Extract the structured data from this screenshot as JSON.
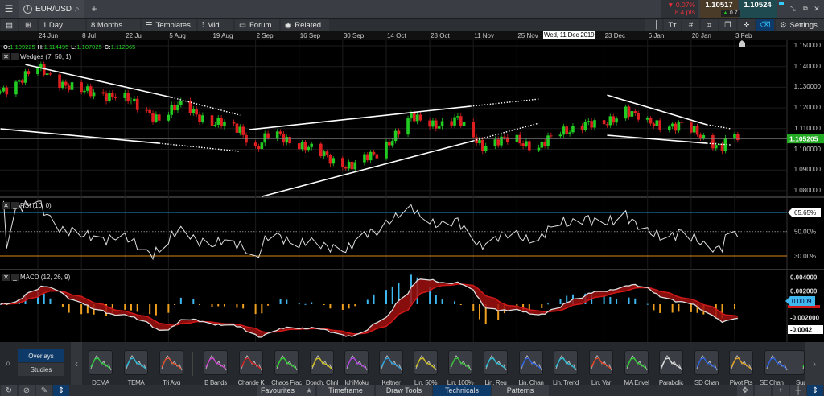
{
  "window": {
    "tab_number": "1",
    "symbol": "EUR/USD",
    "add_tab": "+"
  },
  "quote": {
    "change_pct": "▼ 0.07%",
    "change_pts": "8.4 pts",
    "sell": "1.10517",
    "buy": "1.10524",
    "spread": "0.7",
    "colors": {
      "down": "#e0303a",
      "sell_bg": "#4a3a28",
      "buy_bg": "#1f4a50"
    }
  },
  "toolbar": {
    "interval": "1 Day",
    "range": "8 Months",
    "templates": "Templates",
    "mid": "Mid",
    "forum": "Forum",
    "related": "Related",
    "settings": "Settings"
  },
  "date_axis": {
    "ticks": [
      [
        "24 Jun",
        "2019-06-24"
      ],
      [
        "8 Jul",
        "2019-07-08"
      ],
      [
        "22 Jul",
        "2019-07-22"
      ],
      [
        "5 Aug",
        "2019-08-05"
      ],
      [
        "19 Aug",
        "2019-08-19"
      ],
      [
        "2 Sep",
        "2019-09-02"
      ],
      [
        "16 Sep",
        "2019-09-16"
      ],
      [
        "30 Sep",
        "2019-09-30"
      ],
      [
        "14 Oct",
        "2019-10-14"
      ],
      [
        "28 Oct",
        "2019-10-28"
      ],
      [
        "11 Nov",
        "2019-11-11"
      ],
      [
        "25 Nov",
        "2019-11-25"
      ],
      [
        "23 Dec",
        "2019-12-23"
      ],
      [
        "6 Jan",
        "2020-01-06"
      ],
      [
        "20 Jan",
        "2020-01-20"
      ],
      [
        "3 Feb",
        "2020-02-03"
      ]
    ],
    "crosshair_label": "Wed, 11 Dec 2019"
  },
  "ohlc": {
    "o_label": "O:",
    "o": "1.109225",
    "h_label": "H:",
    "h": "1.114495",
    "l_label": "L:",
    "l": "1.107025",
    "c_label": "C:",
    "c": "1.112965"
  },
  "chart_data": {
    "type": "candlestick",
    "instrument": "EUR/USD",
    "price_axis": {
      "ticks": [
        "1.150000",
        "1.140000",
        "1.130000",
        "1.120000",
        "1.110000",
        "1.100000",
        "1.090000",
        "1.080000"
      ],
      "range": [
        1.077,
        1.152
      ]
    },
    "current_price": "1.105205",
    "close_path": [
      [
        "2019-06-12",
        1.128
      ],
      [
        "2019-06-24",
        1.139
      ],
      [
        "2019-07-07",
        1.128
      ],
      [
        "2019-07-20",
        1.126
      ],
      [
        "2019-08-02",
        1.115
      ],
      [
        "2019-08-10",
        1.122
      ],
      [
        "2019-08-18",
        1.113
      ],
      [
        "2019-08-28",
        1.11
      ],
      [
        "2019-09-02",
        1.1
      ],
      [
        "2019-09-07",
        1.108
      ],
      [
        "2019-09-17",
        1.102
      ],
      [
        "2019-09-28",
        1.094
      ],
      [
        "2019-10-03",
        1.092
      ],
      [
        "2019-10-11",
        1.098
      ],
      [
        "2019-10-22",
        1.115
      ],
      [
        "2019-11-01",
        1.112
      ],
      [
        "2019-11-06",
        1.114
      ],
      [
        "2019-11-14",
        1.102
      ],
      [
        "2019-11-24",
        1.105
      ],
      [
        "2019-12-02",
        1.101
      ],
      [
        "2019-12-09",
        1.108
      ],
      [
        "2019-12-17",
        1.113
      ],
      [
        "2019-12-22",
        1.11
      ],
      [
        "2019-12-30",
        1.12
      ],
      [
        "2020-01-06",
        1.112
      ],
      [
        "2020-01-17",
        1.112
      ],
      [
        "2020-01-25",
        1.104
      ],
      [
        "2020-01-30",
        1.102
      ],
      [
        "2020-02-02",
        1.108
      ],
      [
        "2020-02-04",
        1.105
      ]
    ],
    "wedges_label": "Wedges (7, 50, 1)",
    "trendlines": [
      {
        "solid": [
          [
            "2019-06-20",
            1.141
          ],
          [
            "2019-08-06",
            1.1251
          ]
        ],
        "dotted": [
          [
            "2019-08-06",
            1.1251
          ],
          [
            "2019-08-28",
            1.1165
          ]
        ]
      },
      {
        "solid": [
          [
            "2019-06-12",
            1.1099
          ],
          [
            "2019-08-02",
            1.1029
          ]
        ],
        "dotted": [
          [
            "2019-08-02",
            1.1029
          ],
          [
            "2019-08-28",
            1.099
          ]
        ]
      },
      {
        "solid": [
          [
            "2019-08-31",
            1.1095
          ],
          [
            "2019-11-10",
            1.1208
          ]
        ],
        "dotted": [
          [
            "2019-11-10",
            1.1208
          ],
          [
            "2019-12-02",
            1.1243
          ]
        ]
      },
      {
        "solid": [
          [
            "2019-09-04",
            1.0772
          ],
          [
            "2019-11-11",
            1.1041
          ]
        ],
        "dotted": [
          [
            "2019-11-11",
            1.1041
          ],
          [
            "2019-12-02",
            1.1126
          ]
        ]
      },
      {
        "solid": [
          [
            "2019-12-24",
            1.1262
          ],
          [
            "2020-01-25",
            1.1119
          ]
        ],
        "dotted": [
          [
            "2020-01-25",
            1.1119
          ],
          [
            "2020-02-02",
            1.1099
          ]
        ]
      },
      {
        "solid": [
          [
            "2019-12-24",
            1.1068
          ],
          [
            "2020-01-25",
            1.1029
          ]
        ],
        "dotted": [
          [
            "2020-01-25",
            1.1029
          ],
          [
            "2020-02-02",
            1.1021
          ]
        ]
      }
    ],
    "rsi": {
      "label": "RSI (10, 0)",
      "levels": [
        "65.65%",
        "50.00%",
        "30.00%"
      ],
      "colors": {
        "upper": "#1a8fc9",
        "lower": "#d88a1a"
      }
    },
    "macd": {
      "label": "MACD (12, 26, 9)",
      "ticks": [
        "0.004000",
        "0.002000",
        "-0.002000"
      ],
      "macd_value": "0.0009",
      "hist_value": "-0.0042",
      "colors": {
        "pos": "#3fb8f0",
        "neg": "#f0a020",
        "signal": "#d01818"
      }
    },
    "colors": {
      "up": "#22cc22",
      "down": "#e02020"
    }
  },
  "palette": {
    "tabs": [
      "Overlays",
      "Studies"
    ],
    "items": [
      "DEMA",
      "TEMA",
      "Tri Avg",
      "B Bands",
      "Chande K",
      "Chaos Frac",
      "Donch. Chnl",
      "IchiMoku",
      "Keltner",
      "Lin. 50%",
      "Lin. 100%",
      "Lin. Reg",
      "Lin. Chan",
      "Lin. Trend",
      "Lin. Var",
      "MA Envel",
      "Parabolic",
      "SD Chan",
      "Pivot Pts",
      "SE Chan",
      "Supe"
    ],
    "item_colors": [
      "#2ecc40",
      "#2ab8d8",
      "#e0502a",
      "#d040d0",
      "#d02020",
      "#30d030",
      "#d0c020",
      "#b040e0",
      "#2aa0e0",
      "#d0c020",
      "#30c030",
      "#2ac0d8",
      "#2a60e0",
      "#2ac0d8",
      "#e04020",
      "#30d030",
      "#dddddd",
      "#2a60e0",
      "#e0a020",
      "#2a60e0",
      "#30d030"
    ]
  },
  "footer": {
    "tabs": [
      "Favourites",
      "Timeframe",
      "Draw Tools",
      "Technicals",
      "Patterns"
    ]
  }
}
